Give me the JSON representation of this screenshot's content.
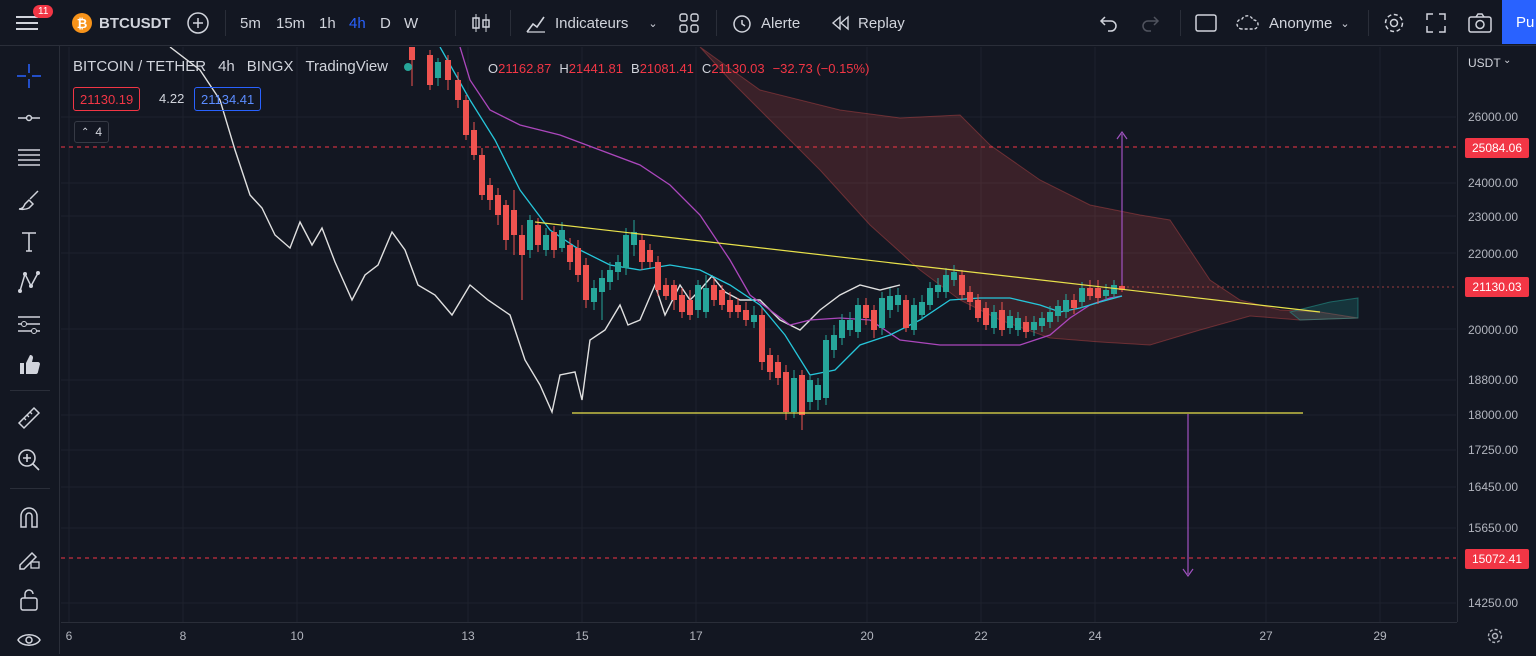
{
  "toolbar": {
    "notification_count": "11",
    "symbol": "BTCUSDT",
    "timeframes": [
      "5m",
      "15m",
      "1h",
      "4h",
      "D",
      "W"
    ],
    "active_timeframe": "4h",
    "indicators_label": "Indicateurs",
    "alert_label": "Alerte",
    "replay_label": "Replay",
    "account_label": "Anonyme",
    "publish_label": "Pu"
  },
  "legend": {
    "title": "BITCOIN / TETHER",
    "interval": "4h",
    "exchange": "BINGX",
    "source": "TradingView",
    "ohlc": {
      "o_key": "O",
      "o": "21162.87",
      "h_key": "H",
      "h": "21441.81",
      "b_key": "B",
      "b": "21081.41",
      "c_key": "C",
      "c": "21130.03",
      "change": "−32.73 (−0.15%)"
    },
    "bid": "21130.19",
    "spread": "4.22",
    "ask": "21134.41",
    "indicators_count": "4"
  },
  "y_axis": {
    "currency": "USDT",
    "ticks": [
      "26000.00",
      "24000.00",
      "23000.00",
      "22000.00",
      "20000.00",
      "18800.00",
      "18000.00",
      "17250.00",
      "16450.00",
      "15650.00",
      "14250.00"
    ],
    "labels": {
      "upper_line": "25084.06",
      "current_price": "21130.03",
      "lower_line": "15072.41"
    }
  },
  "x_axis": {
    "ticks": [
      "6",
      "8",
      "10",
      "13",
      "15",
      "17",
      "20",
      "22",
      "24",
      "27",
      "29"
    ]
  },
  "colors": {
    "up": "#26a69a",
    "down": "#ef5350",
    "accent": "#2962ff",
    "lagging": "#e0e0e0",
    "tenkan": "#26c6da",
    "kijun": "#ab47bc",
    "trend": "#e9e24b",
    "target": "#a052c0",
    "level": "#f23645"
  }
}
